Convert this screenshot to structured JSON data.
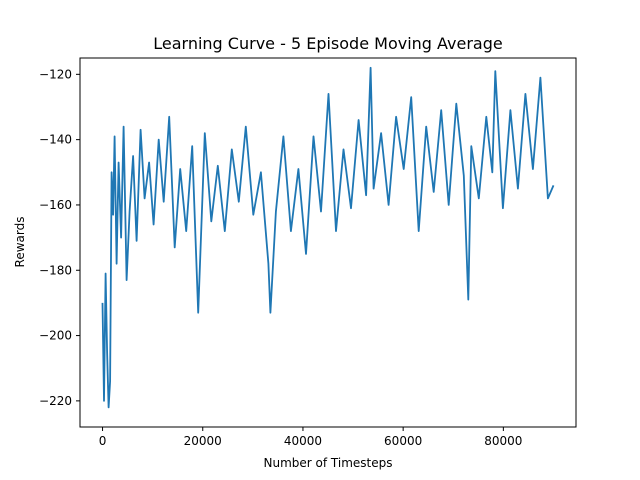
{
  "chart_data": {
    "type": "line",
    "title": "Learning Curve  - 5 Episode Moving Average",
    "xlabel": "Number of Timesteps",
    "ylabel": "Rewards",
    "xlim": [
      -4500,
      94500
    ],
    "ylim": [
      -228,
      -115
    ],
    "xticks": [
      0,
      20000,
      40000,
      60000,
      80000
    ],
    "xtick_labels": [
      "0",
      "20000",
      "40000",
      "60000",
      "80000"
    ],
    "yticks": [
      -120,
      -140,
      -160,
      -180,
      -200,
      -220
    ],
    "ytick_labels": [
      "−120",
      "−140",
      "−160",
      "−180",
      "−200",
      "−220"
    ],
    "grid": false,
    "series": [
      {
        "color": "#1f77b4",
        "x": [
          0,
          300,
          600,
          900,
          1200,
          1500,
          1800,
          2100,
          2400,
          2800,
          3200,
          3700,
          4200,
          4800,
          5400,
          6100,
          6800,
          7600,
          8400,
          9300,
          10200,
          11200,
          12200,
          13300,
          14400,
          15500,
          16700,
          17900,
          19100,
          20400,
          21700,
          23000,
          24400,
          25800,
          27200,
          28600,
          30100,
          31600,
          33100,
          33500,
          34600,
          36100,
          37600,
          39100,
          40600,
          42100,
          43600,
          45100,
          46600,
          48100,
          49600,
          51100,
          52600,
          53500,
          54100,
          55600,
          57100,
          58600,
          60100,
          61600,
          63100,
          64600,
          66100,
          67600,
          69100,
          70600,
          72100,
          73000,
          73600,
          75100,
          76600,
          77800,
          78400,
          79900,
          81400,
          82900,
          84400,
          85900,
          87400,
          88900,
          90000
        ],
        "y": [
          -190,
          -220,
          -181,
          -205,
          -222,
          -214,
          -150,
          -163,
          -139,
          -178,
          -147,
          -170,
          -136,
          -183,
          -162,
          -145,
          -171,
          -137,
          -158,
          -147,
          -166,
          -140,
          -159,
          -133,
          -173,
          -149,
          -168,
          -142,
          -193,
          -138,
          -165,
          -148,
          -168,
          -143,
          -159,
          -136,
          -163,
          -150,
          -178,
          -193,
          -162,
          -139,
          -168,
          -149,
          -175,
          -139,
          -162,
          -126,
          -168,
          -143,
          -161,
          -134,
          -157,
          -118,
          -155,
          -138,
          -160,
          -133,
          -149,
          -127,
          -168,
          -136,
          -156,
          -131,
          -160,
          -129,
          -151,
          -189,
          -142,
          -158,
          -133,
          -150,
          -119,
          -161,
          -131,
          -155,
          -126,
          -149,
          -121,
          -158,
          -154
        ]
      }
    ]
  }
}
